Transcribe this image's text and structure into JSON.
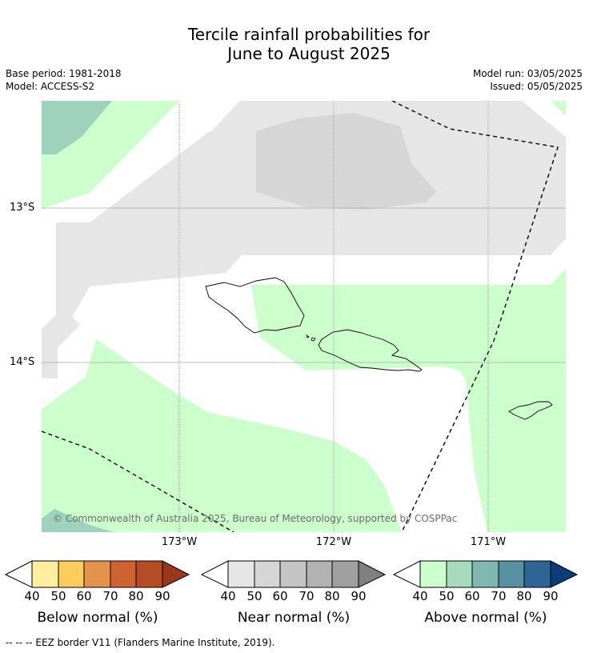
{
  "title_line1": "Tercile rainfall probabilities for",
  "title_line2": "June to August 2025",
  "base_period": "Base period: 1981-2018",
  "model": "Model: ACCESS-S2",
  "model_run": "Model run: 03/05/2025",
  "issued": "Issued: 05/05/2025",
  "lat_labels": [
    "13°S",
    "14°S"
  ],
  "lon_labels": [
    "173°W",
    "172°W",
    "171°W"
  ],
  "copyright": "© Commonwealth of Australia 2025, Bureau of Meteorology, supported by COSPPac",
  "colorbars": [
    {
      "label": "Below normal (%)",
      "ticks": [
        "40",
        "50",
        "60",
        "70",
        "80",
        "90"
      ],
      "colors": [
        "#ffffff",
        "#ffeda0",
        "#fecc5c",
        "#e3934a",
        "#cf6231",
        "#b44d25",
        "#99371d"
      ]
    },
    {
      "label": "Near normal (%)",
      "ticks": [
        "40",
        "50",
        "60",
        "70",
        "80",
        "90"
      ],
      "colors": [
        "#ffffff",
        "#e6e6e6",
        "#d6d6d6",
        "#c4c4c4",
        "#b2b2b2",
        "#a0a0a0",
        "#808080"
      ]
    },
    {
      "label": "Above normal (%)",
      "ticks": [
        "40",
        "50",
        "60",
        "70",
        "80",
        "90"
      ],
      "colors": [
        "#ffffff",
        "#ccffcc",
        "#a8dbbb",
        "#80b8b0",
        "#5891a0",
        "#2f6497",
        "#0b3d7a"
      ]
    }
  ],
  "legend_note": "-- -- -- EEZ border V11 (Flanders Marine Institute, 2019).",
  "map_colors": {
    "light_green": "#ccffcc",
    "teal": "#9ed2bc",
    "light_gray": "#e6e6e6",
    "mid_gray": "#d6d6d6"
  }
}
